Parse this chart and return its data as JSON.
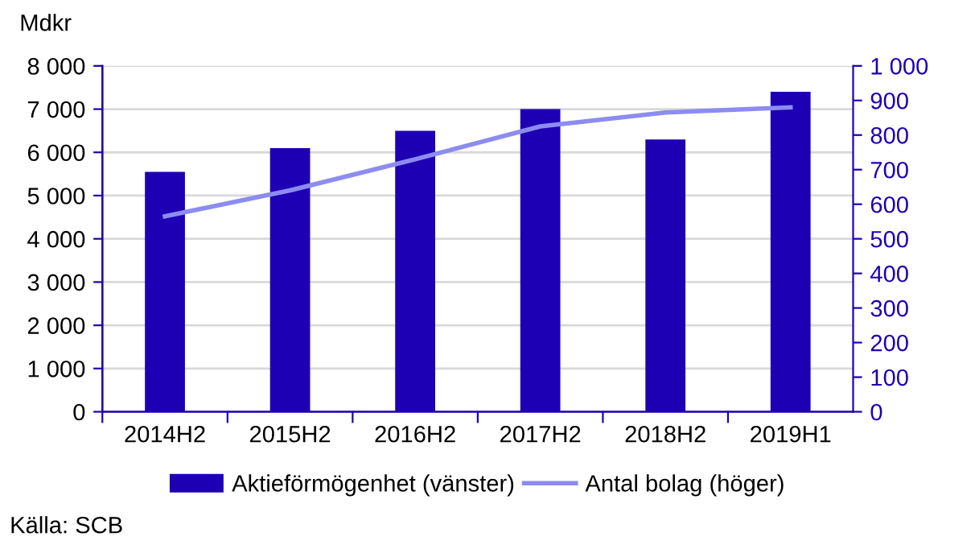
{
  "chart_data": {
    "type": "bar",
    "ylabel": "Mdkr",
    "categories": [
      "2014H2",
      "2015H2",
      "2016H2",
      "2017H2",
      "2018H2",
      "2019H1"
    ],
    "series": [
      {
        "name": "Aktieförmögenhet (vänster)",
        "color": "#1e00b4",
        "values": [
          5550,
          6100,
          6500,
          7000,
          6300,
          7400
        ]
      },
      {
        "name": "Antal bolag (höger)",
        "type": "line",
        "axis": "y2",
        "color": "#8c8cf0",
        "values": [
          565,
          640,
          730,
          825,
          865,
          880
        ]
      }
    ],
    "ylim": [
      0,
      8000
    ],
    "yticks": [
      {
        "value": 0,
        "label": "0"
      },
      {
        "value": 1000,
        "label": "1 000"
      },
      {
        "value": 2000,
        "label": "2 000"
      },
      {
        "value": 3000,
        "label": "3 000"
      },
      {
        "value": 4000,
        "label": "4 000"
      },
      {
        "value": 5000,
        "label": "5 000"
      },
      {
        "value": 6000,
        "label": "6 000"
      },
      {
        "value": 7000,
        "label": "7 000"
      },
      {
        "value": 8000,
        "label": "8 000"
      }
    ],
    "y2lim": [
      0,
      1000
    ],
    "y2ticks": [
      0,
      100,
      200,
      300,
      400,
      500,
      600,
      700,
      800,
      900,
      {
        "value": 1000,
        "label": "1 000"
      }
    ],
    "grid": "y",
    "legend": "bottom",
    "marker": "none",
    "line_style": "solid",
    "annotations": [
      "Källa: SCB"
    ]
  }
}
